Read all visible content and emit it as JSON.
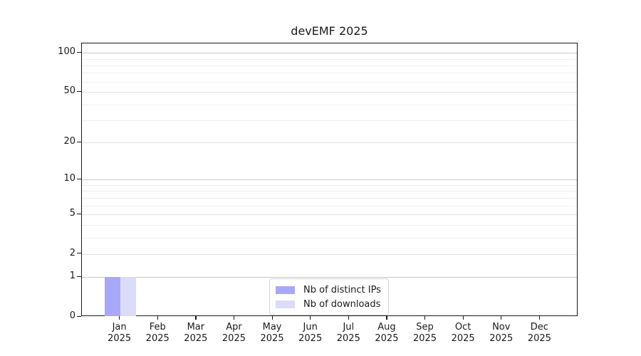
{
  "title": "devEMF 2025",
  "chart_data": {
    "type": "bar",
    "title": "devEMF 2025",
    "categories": [
      "Jan",
      "Feb",
      "Mar",
      "Apr",
      "May",
      "Jun",
      "Jul",
      "Aug",
      "Sep",
      "Oct",
      "Nov",
      "Dec"
    ],
    "year": "2025",
    "series": [
      {
        "name": "Nb of distinct IPs",
        "color": "#a8a8fa",
        "values": [
          1,
          0,
          0,
          0,
          0,
          0,
          0,
          0,
          0,
          0,
          0,
          0
        ]
      },
      {
        "name": "Nb of downloads",
        "color": "#dbdbfa",
        "values": [
          1,
          0,
          0,
          0,
          0,
          0,
          0,
          0,
          0,
          0,
          0,
          0
        ]
      }
    ],
    "yscale": "log10(1+x)",
    "y_ticks": [
      0,
      1,
      2,
      5,
      10,
      20,
      50,
      100
    ],
    "y_minor_ticks": [
      3,
      4,
      6,
      7,
      8,
      9,
      30,
      40,
      60,
      70,
      80,
      90
    ],
    "ylim": [
      0,
      118
    ],
    "grid": "horizontal",
    "legend_position": "inside-bottom-center"
  },
  "legend": {
    "items": [
      {
        "label": "Nb of distinct IPs",
        "color": "#a8a8fa"
      },
      {
        "label": "Nb of downloads",
        "color": "#dbdbfa"
      }
    ]
  },
  "colors": {
    "background": "#ffffff",
    "frame": "#1a1a1a",
    "text": "#1a1a1a",
    "grid_decade": "#c8c8c8",
    "grid_labeled": "#e2e2e2",
    "grid_minor": "#efefef",
    "legend_border": "#d4d4d4",
    "bar_distinct_ips": "#a8a8fa",
    "bar_downloads": "#dbdbfa"
  }
}
